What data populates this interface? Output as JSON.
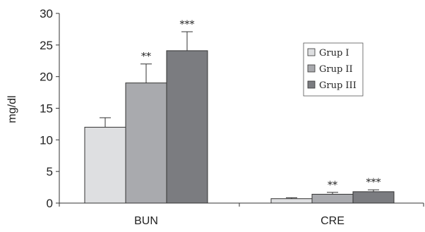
{
  "chart_data": {
    "type": "bar",
    "categories": [
      "BUN",
      "CRE"
    ],
    "series": [
      {
        "name": "Grup I",
        "values": [
          12.0,
          0.7
        ],
        "errors": [
          1.5,
          0.15
        ],
        "color": "#dedfe1",
        "sig": [
          "",
          ""
        ]
      },
      {
        "name": "Grup II",
        "values": [
          19.0,
          1.4
        ],
        "errors": [
          3.0,
          0.3
        ],
        "color": "#a9aaae",
        "sig": [
          "**",
          "**"
        ]
      },
      {
        "name": "Grup III",
        "values": [
          24.1,
          1.8
        ],
        "errors": [
          3.0,
          0.3
        ],
        "color": "#7b7c80",
        "sig": [
          "***",
          "***"
        ]
      }
    ],
    "ylabel": "mg/dl",
    "xlabel": "",
    "ylim": [
      0,
      30
    ],
    "yticks": [
      0,
      5,
      10,
      15,
      20,
      25,
      30
    ],
    "legend_position": "top-right",
    "grid": false
  }
}
